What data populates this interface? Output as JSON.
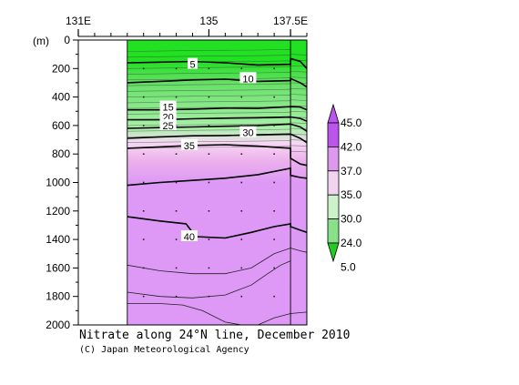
{
  "chart_data": {
    "type": "heatmap",
    "title": "Nitrate along 24°N line, December 2010",
    "credit": "(C) Japan Meteorological Agency",
    "x_axis": {
      "ticks": [
        "131E",
        "135",
        "137.5E"
      ],
      "tick_values": [
        131,
        135,
        137.5
      ],
      "range": [
        131,
        138.0
      ]
    },
    "y_axis": {
      "unit_label": "(m)",
      "ticks": [
        "0",
        "200",
        "400",
        "600",
        "800",
        "1000",
        "1200",
        "1400",
        "1600",
        "1800",
        "2000"
      ],
      "tick_values": [
        0,
        200,
        400,
        600,
        800,
        1000,
        1200,
        1400,
        1600,
        1800,
        2000
      ],
      "range": [
        0,
        2000
      ],
      "direction": "down"
    },
    "data_start_lon": 132.5,
    "colorbar": {
      "labels": [
        "45.0",
        "42.0",
        "37.0",
        "35.0",
        "30.0",
        "24.0",
        "5.0"
      ],
      "colors": [
        "#ffffff",
        "#bb55ee",
        "#dd99ee",
        "#f0d4f0",
        "#ccf2cc",
        "#88e088",
        "#22cc22"
      ]
    },
    "colors": {
      "green_surface": "#22e022",
      "green_mid": "#66e066",
      "green_light": "#aaf0aa",
      "pink_light": "#f6d8f4",
      "pink": "#ecb0ec",
      "purple": "#dd99f5"
    },
    "contour_labels": [
      {
        "text": "5",
        "lon": 134.5,
        "depth": 170
      },
      {
        "text": "10",
        "lon": 136.2,
        "depth": 270
      },
      {
        "text": "15",
        "lon": 133.75,
        "depth": 470
      },
      {
        "text": "20",
        "lon": 133.75,
        "depth": 540
      },
      {
        "text": "25",
        "lon": 133.75,
        "depth": 600
      },
      {
        "text": "30",
        "lon": 136.2,
        "depth": 650
      },
      {
        "text": "35",
        "lon": 134.4,
        "depth": 740
      },
      {
        "text": "40",
        "lon": 134.4,
        "depth": 1380
      }
    ],
    "bold_contours": [
      {
        "level": 5,
        "points": [
          [
            132.5,
            160
          ],
          [
            133.5,
            155
          ],
          [
            134.5,
            150
          ],
          [
            135.5,
            160
          ],
          [
            136.5,
            175
          ],
          [
            137.5,
            170
          ],
          [
            137.5,
            130
          ],
          [
            137.8,
            150
          ],
          [
            138.0,
            200
          ]
        ]
      },
      {
        "level": 10,
        "points": [
          [
            132.5,
            300
          ],
          [
            133.5,
            290
          ],
          [
            134.5,
            280
          ],
          [
            135.5,
            275
          ],
          [
            136.5,
            290
          ],
          [
            137.5,
            285
          ],
          [
            137.5,
            270
          ],
          [
            137.8,
            300
          ],
          [
            138.0,
            330
          ]
        ]
      },
      {
        "level": 15,
        "points": [
          [
            132.5,
            490
          ],
          [
            133.5,
            490
          ],
          [
            134.5,
            485
          ],
          [
            135.5,
            478
          ],
          [
            136.5,
            480
          ],
          [
            137.5,
            468
          ],
          [
            137.8,
            470
          ],
          [
            138.0,
            490
          ]
        ]
      },
      {
        "level": 20,
        "points": [
          [
            132.5,
            560
          ],
          [
            133.5,
            560
          ],
          [
            134.5,
            553
          ],
          [
            135.5,
            548
          ],
          [
            136.5,
            545
          ],
          [
            137.5,
            540
          ],
          [
            137.8,
            550
          ],
          [
            138.0,
            570
          ]
        ]
      },
      {
        "level": 25,
        "points": [
          [
            132.5,
            620
          ],
          [
            133.5,
            615
          ],
          [
            134.5,
            610
          ],
          [
            135.5,
            605
          ],
          [
            136.5,
            600
          ],
          [
            137.5,
            590
          ],
          [
            137.8,
            610
          ],
          [
            138.0,
            640
          ]
        ]
      },
      {
        "level": 30,
        "points": [
          [
            132.5,
            690
          ],
          [
            133.5,
            680
          ],
          [
            134.5,
            672
          ],
          [
            135.5,
            670
          ],
          [
            136.5,
            665
          ],
          [
            137.5,
            660
          ],
          [
            137.8,
            690
          ],
          [
            138.0,
            720
          ]
        ]
      },
      {
        "level": 35,
        "points": [
          [
            132.5,
            760
          ],
          [
            133.5,
            750
          ],
          [
            134.5,
            740
          ],
          [
            135.5,
            735
          ],
          [
            136.5,
            745
          ],
          [
            137.5,
            760
          ],
          [
            137.5,
            830
          ],
          [
            137.8,
            870
          ],
          [
            138.0,
            880
          ]
        ]
      },
      {
        "level": 38,
        "points": [
          [
            132.5,
            1020
          ],
          [
            133.5,
            1000
          ],
          [
            134.5,
            985
          ],
          [
            135.5,
            970
          ],
          [
            136.5,
            945
          ],
          [
            137.5,
            900
          ],
          [
            137.5,
            950
          ],
          [
            137.8,
            965
          ],
          [
            138.0,
            970
          ]
        ]
      },
      {
        "level": 40,
        "points": [
          [
            132.5,
            1240
          ],
          [
            133.5,
            1270
          ],
          [
            134.3,
            1290
          ],
          [
            134.6,
            1380
          ],
          [
            135.5,
            1390
          ],
          [
            136.3,
            1350
          ],
          [
            137.0,
            1310
          ],
          [
            137.5,
            1290
          ],
          [
            137.5,
            1310
          ],
          [
            137.8,
            1335
          ],
          [
            138.0,
            1350
          ]
        ]
      }
    ],
    "thin_contours": [
      {
        "points": [
          [
            132.5,
            1580
          ],
          [
            133.5,
            1620
          ],
          [
            134.5,
            1640
          ],
          [
            135.5,
            1640
          ],
          [
            136.3,
            1600
          ],
          [
            137.0,
            1500
          ],
          [
            137.5,
            1460
          ],
          [
            137.8,
            1480
          ],
          [
            138.0,
            1490
          ]
        ]
      },
      {
        "points": [
          [
            132.5,
            1770
          ],
          [
            133.5,
            1800
          ],
          [
            134.5,
            1810
          ],
          [
            135.5,
            1790
          ],
          [
            136.3,
            1720
          ],
          [
            136.8,
            1640
          ],
          [
            137.2,
            1580
          ],
          [
            137.5,
            1550
          ]
        ]
      },
      {
        "points": [
          [
            132.5,
            1850
          ],
          [
            133.5,
            1850
          ],
          [
            134.2,
            1860
          ],
          [
            134.8,
            1900
          ],
          [
            135.5,
            1980
          ],
          [
            136.0,
            2000
          ]
        ]
      },
      {
        "points": [
          [
            136.5,
            2000
          ],
          [
            137.0,
            1950
          ],
          [
            137.5,
            1920
          ],
          [
            138.0,
            1910
          ]
        ]
      }
    ]
  }
}
